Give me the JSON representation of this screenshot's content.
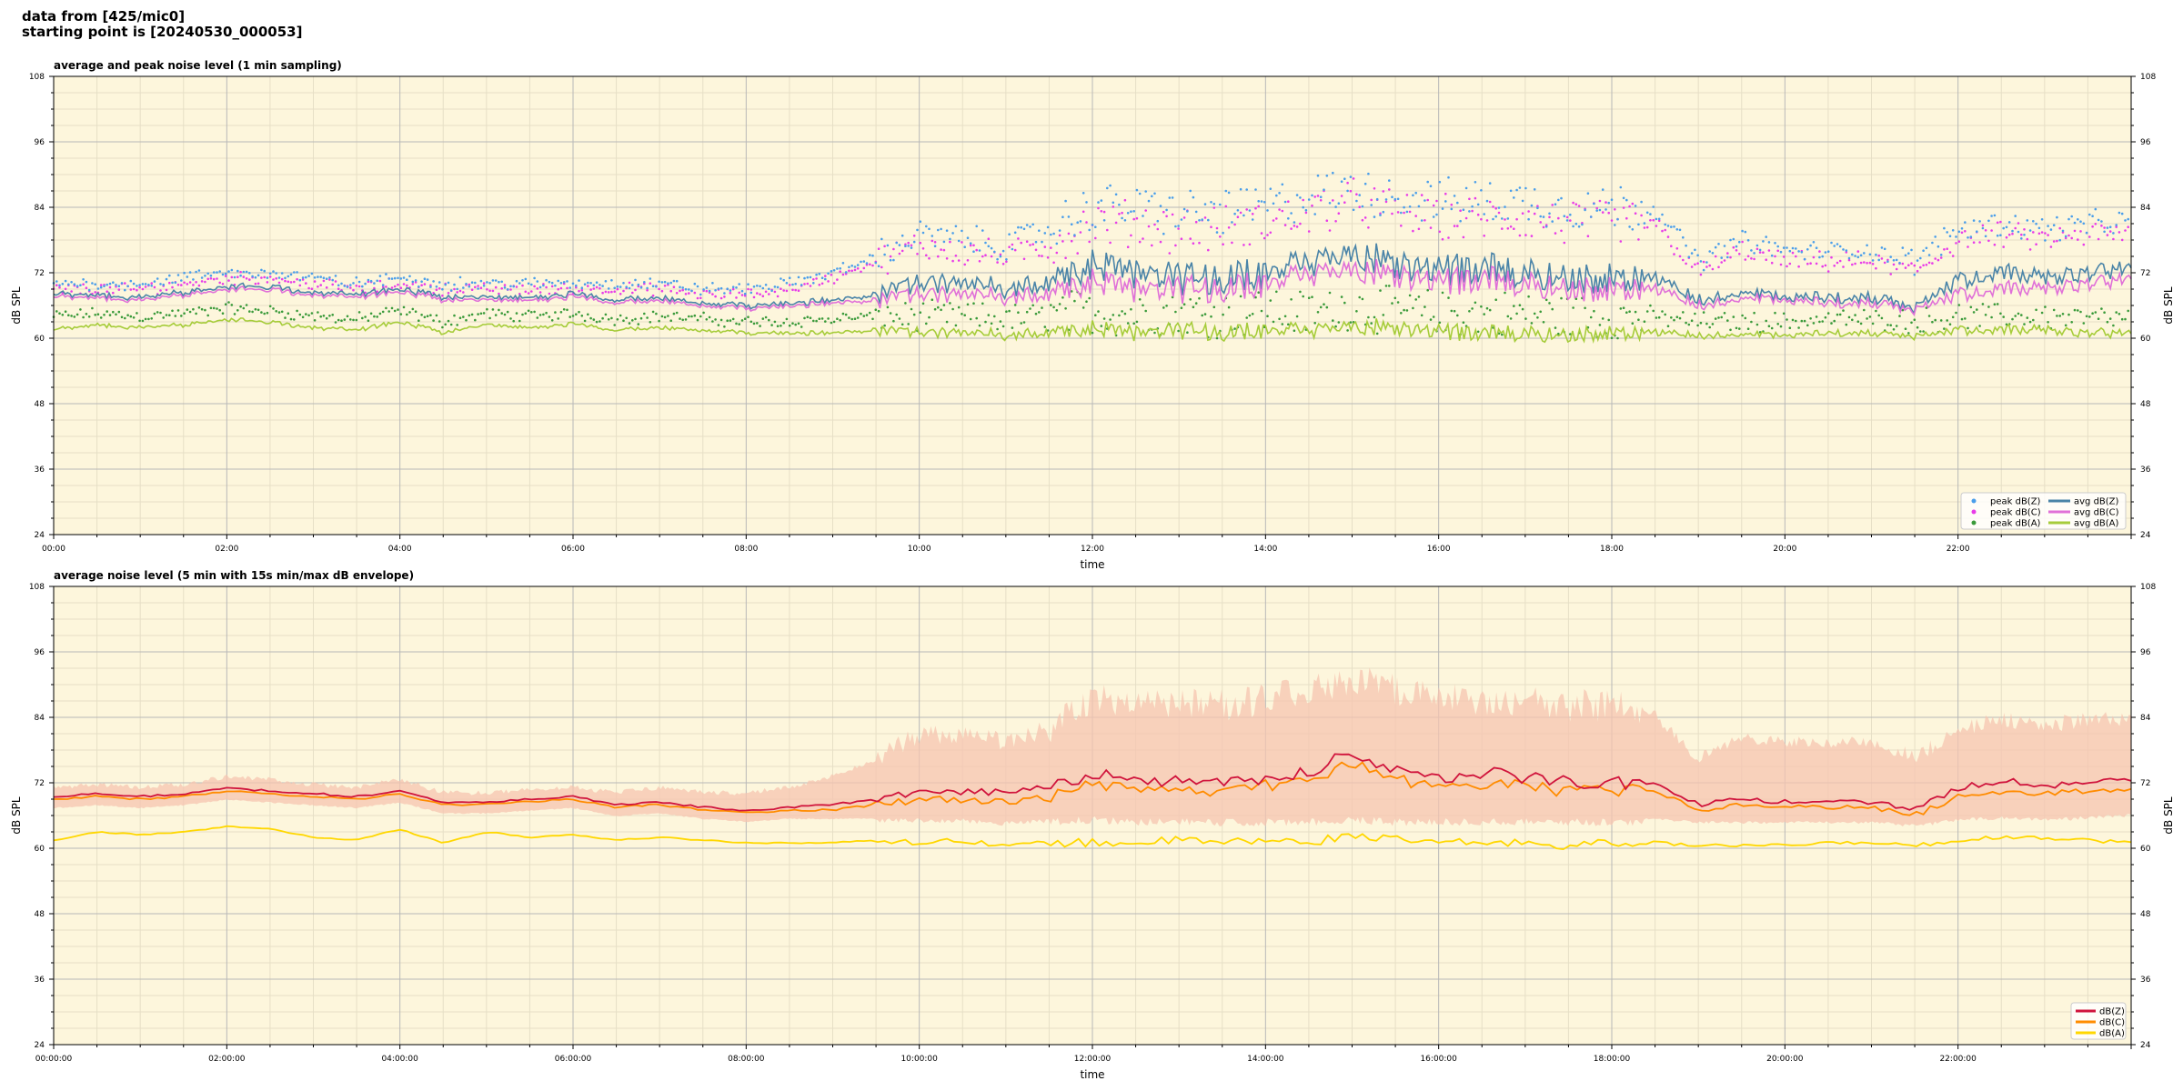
{
  "header": {
    "line1": "data from [425/mic0]",
    "line2": "starting point is [20240530_000053]"
  },
  "colors": {
    "plot_bg": "#fdf6dc",
    "grid_major": "#b8b8b8",
    "grid_minor": "#e6dfc6",
    "peak_z": "#4a9eea",
    "peak_c": "#e83ce8",
    "peak_a": "#3a9a3a",
    "avg_z": "#4a84a8",
    "avg_c": "#e070d8",
    "avg_a": "#a6cc3a",
    "env": "#f6c4b0",
    "db_z": "#d0143c",
    "db_c": "#ff8c00",
    "db_a": "#ffd700"
  },
  "chart_data": [
    {
      "type": "line",
      "title": "average and peak noise level (1 min sampling)",
      "xlabel": "time",
      "ylabel": "dB SPL",
      "ylim": [
        24,
        108
      ],
      "xlim_hours": [
        0,
        24
      ],
      "yticks": [
        "24",
        "36",
        "48",
        "60",
        "72",
        "84",
        "96",
        "108"
      ],
      "xticks": [
        "00:00",
        "02:00",
        "04:00",
        "06:00",
        "08:00",
        "10:00",
        "12:00",
        "14:00",
        "16:00",
        "18:00",
        "20:00",
        "22:00"
      ],
      "grid": true,
      "legend_position": "lower-right",
      "legend": [
        "peak dB(Z)",
        "peak dB(C)",
        "peak dB(A)",
        "avg dB(Z)",
        "avg dB(C)",
        "avg dB(A)"
      ],
      "x_hours": [
        0,
        0.5,
        1,
        1.5,
        2,
        2.5,
        3,
        3.5,
        4,
        4.5,
        5,
        5.5,
        6,
        6.5,
        7,
        7.5,
        8,
        8.5,
        9,
        9.5,
        10,
        10.5,
        11,
        11.5,
        12,
        12.5,
        13,
        13.5,
        14,
        14.5,
        15,
        15.5,
        16,
        16.5,
        17,
        17.5,
        18,
        18.5,
        19,
        19.5,
        20,
        20.5,
        21,
        21.5,
        22,
        22.5,
        23,
        23.5,
        24
      ],
      "series": [
        {
          "name": "avg dB(Z)",
          "values": [
            68,
            68,
            67.5,
            68.5,
            69.5,
            69.5,
            68.5,
            68,
            69,
            67.5,
            67.5,
            67.5,
            68,
            67,
            67.5,
            66.5,
            66,
            66.5,
            67,
            68,
            70,
            70,
            69,
            70,
            73,
            72,
            71,
            71,
            72,
            73,
            76,
            73,
            72,
            73,
            72,
            71,
            71,
            71,
            67,
            68,
            67.5,
            67.5,
            67.5,
            66,
            70.5,
            72,
            71,
            72,
            73
          ]
        },
        {
          "name": "avg dB(C)",
          "values": [
            67.5,
            67.5,
            67,
            68,
            69,
            69,
            68,
            67.5,
            68.5,
            67,
            67,
            67,
            67.5,
            66.5,
            67,
            66,
            65.5,
            66,
            66.5,
            67,
            68,
            68,
            67.5,
            68,
            70,
            69,
            69,
            69,
            70,
            71,
            73,
            71,
            70,
            71,
            70,
            69,
            69,
            69,
            66,
            67,
            67,
            66.5,
            66.5,
            65.5,
            68,
            69,
            69,
            70,
            71
          ]
        },
        {
          "name": "avg dB(A)",
          "values": [
            61.5,
            62.5,
            62,
            62.5,
            63.5,
            63,
            62,
            61.5,
            63,
            61,
            62.5,
            62,
            62.5,
            61.5,
            62,
            61.5,
            61,
            61,
            61,
            61.5,
            61,
            61,
            60.5,
            61,
            61.5,
            61,
            61.5,
            61,
            61.5,
            61,
            62.5,
            61.5,
            61,
            61,
            61,
            60.5,
            61,
            61,
            60.5,
            60.5,
            60.5,
            61,
            61,
            60.5,
            61.5,
            61.5,
            61.5,
            61,
            61
          ]
        },
        {
          "name": "peak dB(Z)",
          "values": [
            70,
            70,
            70,
            71,
            72,
            72,
            71,
            70,
            71,
            70,
            70,
            70,
            70,
            70,
            70,
            69,
            69,
            70,
            72,
            75,
            79,
            78,
            77,
            80,
            84,
            84,
            83,
            83,
            84,
            86,
            87,
            86,
            85,
            85,
            85,
            84,
            84,
            84,
            74,
            78,
            76,
            76,
            76,
            74,
            80,
            81,
            80,
            81,
            81
          ]
        },
        {
          "name": "peak dB(C)",
          "values": [
            69,
            69,
            69,
            70,
            71,
            71,
            70,
            69,
            70,
            69,
            69,
            69,
            69,
            69,
            69,
            68,
            68,
            69,
            71,
            74,
            77,
            76,
            75,
            77,
            81,
            81,
            80,
            80,
            81,
            83,
            85,
            83,
            82,
            82,
            82,
            81,
            81,
            81,
            72,
            76,
            74,
            74,
            74,
            72,
            78,
            79,
            78,
            79,
            79
          ]
        },
        {
          "name": "peak dB(A)",
          "values": [
            64,
            64.5,
            64,
            64.5,
            65.5,
            65,
            64,
            63.5,
            65,
            63,
            64.5,
            64,
            64.5,
            63.5,
            64,
            63.5,
            63,
            63,
            63.5,
            64,
            64,
            64,
            63.5,
            64,
            65,
            64.5,
            65,
            64.5,
            65,
            64.5,
            66,
            65,
            64.5,
            64.5,
            64.5,
            64,
            64,
            64,
            63,
            63,
            63,
            63.5,
            63.5,
            63,
            64,
            64,
            64,
            63.5,
            63.5
          ]
        }
      ]
    },
    {
      "type": "line",
      "title": "average noise level (5 min with 15s min/max dB envelope)",
      "xlabel": "time",
      "ylabel": "dB SPL",
      "ylim": [
        24,
        108
      ],
      "xlim_hours": [
        0,
        24
      ],
      "yticks": [
        "24",
        "36",
        "48",
        "60",
        "72",
        "84",
        "96",
        "108"
      ],
      "xticks": [
        "00:00:00",
        "02:00:00",
        "04:00:00",
        "06:00:00",
        "08:00:00",
        "10:00:00",
        "12:00:00",
        "14:00:00",
        "16:00:00",
        "18:00:00",
        "20:00:00",
        "22:00:00"
      ],
      "grid": true,
      "legend_position": "lower-right",
      "legend": [
        "dB(Z)",
        "dB(C)",
        "dB(A)"
      ],
      "x_hours": [
        0,
        0.5,
        1,
        1.5,
        2,
        2.5,
        3,
        3.5,
        4,
        4.5,
        5,
        5.5,
        6,
        6.5,
        7,
        7.5,
        8,
        8.5,
        9,
        9.5,
        10,
        10.5,
        11,
        11.5,
        12,
        12.5,
        13,
        13.5,
        14,
        14.5,
        15,
        15.5,
        16,
        16.5,
        17,
        17.5,
        18,
        18.5,
        19,
        19.5,
        20,
        20.5,
        21,
        21.5,
        22,
        22.5,
        23,
        23.5,
        24
      ],
      "series": [
        {
          "name": "dB(Z)",
          "values": [
            69.5,
            70,
            69.5,
            70,
            71,
            70.5,
            70,
            69.5,
            70.5,
            68.5,
            68.5,
            69,
            69.5,
            68,
            68.5,
            67.5,
            67,
            67.5,
            68,
            69,
            70.5,
            70.5,
            70,
            71,
            73.5,
            72.5,
            72,
            72,
            73,
            74,
            78,
            74,
            73,
            74,
            73,
            72,
            72,
            72,
            68,
            69,
            68.5,
            68.5,
            68.5,
            67,
            71,
            72.5,
            71.5,
            72,
            72.5
          ]
        },
        {
          "name": "dB(C)",
          "values": [
            69,
            69.5,
            69,
            69.5,
            70.5,
            70,
            69.5,
            69,
            70,
            68,
            68,
            68.5,
            69,
            67.5,
            68,
            67,
            66.5,
            67,
            67,
            68,
            69,
            69,
            68.5,
            69.5,
            72,
            71,
            70.5,
            70.5,
            71.5,
            72.5,
            75.5,
            72.5,
            71.5,
            72,
            71.5,
            70.5,
            70.5,
            70.5,
            67,
            68,
            67.5,
            67.5,
            67.5,
            66,
            69.5,
            70.5,
            70,
            70.5,
            71
          ]
        },
        {
          "name": "dB(A)",
          "values": [
            61.5,
            63,
            62.5,
            63,
            64,
            63.5,
            62,
            61.5,
            63.5,
            61,
            63,
            62,
            62.5,
            61.5,
            62,
            61.5,
            61,
            61,
            61,
            61.5,
            61,
            61.5,
            60.5,
            61,
            61,
            61,
            61.5,
            61,
            61.5,
            61,
            62.5,
            61.5,
            61,
            61,
            61,
            60.5,
            61,
            61,
            60.5,
            60.5,
            60.5,
            61,
            61,
            60.5,
            61.5,
            62,
            62,
            61.5,
            61
          ]
        },
        {
          "name": "envelope max",
          "values": [
            71,
            71.5,
            71,
            71.5,
            73,
            72.5,
            71.5,
            71,
            72.5,
            70,
            70,
            70.5,
            71,
            70,
            71,
            70,
            70,
            71,
            73,
            76,
            80,
            80,
            79,
            81,
            86,
            86,
            85,
            85,
            86,
            88,
            90,
            88,
            86,
            86,
            86,
            85,
            85,
            84,
            76,
            80,
            79,
            79,
            79,
            76,
            81,
            83,
            82,
            83,
            83
          ]
        },
        {
          "name": "envelope min",
          "values": [
            67.5,
            68,
            67.5,
            68,
            69,
            68.5,
            68,
            67.5,
            68.5,
            66.5,
            66.5,
            67,
            67.5,
            66,
            66.5,
            65.5,
            65,
            65.5,
            65.5,
            65.5,
            65.5,
            65.5,
            65,
            65.5,
            66,
            65.5,
            65.5,
            65.5,
            65.5,
            65.5,
            66,
            65.5,
            65.5,
            65.5,
            65.5,
            65.5,
            65.5,
            65.5,
            65,
            65,
            65,
            65,
            65,
            64.5,
            65.5,
            66,
            65.5,
            66,
            66.5
          ]
        }
      ]
    }
  ]
}
